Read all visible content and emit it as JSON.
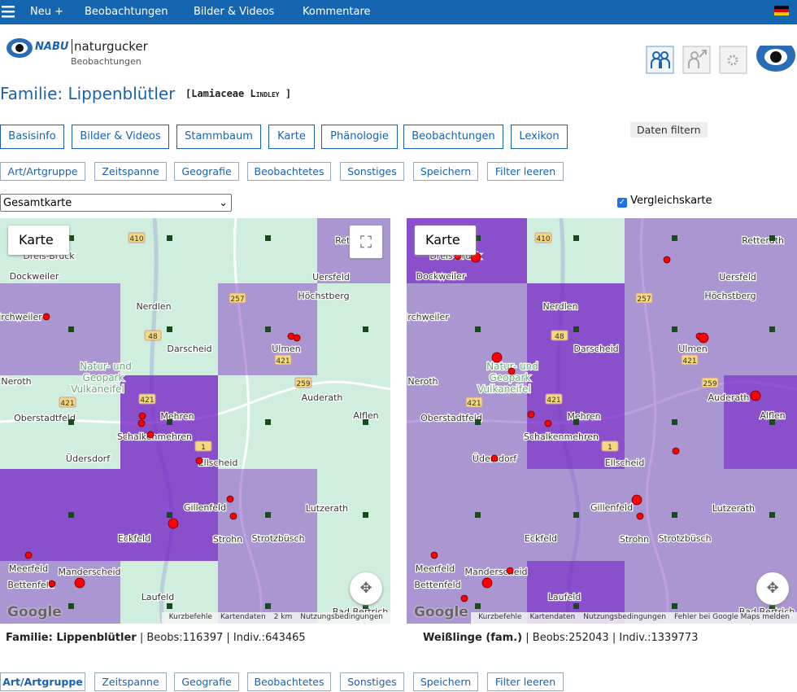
{
  "topnav": {
    "items": [
      "Neu +",
      "Beobachtungen",
      "Bilder & Videos",
      "Kommentare"
    ]
  },
  "header": {
    "brand": "NABU",
    "name": "naturgucker",
    "sub": "Beobachtungen"
  },
  "title": {
    "family": "Familie: Lippenblütler",
    "latin": "Lamiaceae",
    "author": "Lindley"
  },
  "tabs": [
    "Basisinfo",
    "Bilder & Videos",
    "Stammbaum",
    "Karte",
    "Phänologie",
    "Beobachtungen",
    "Lexikon"
  ],
  "filter_button": "Daten filtern",
  "filters": [
    "Art/Artgruppe",
    "Zeitspanne",
    "Geografie",
    "Beobachtetes",
    "Sonstiges",
    "Speichern",
    "Filter leeren"
  ],
  "select": "Gesamtkarte",
  "compare_label": "Vergleichskarte",
  "map_type": "Karte",
  "google": "Google",
  "map_labels": [
    "Dreis-Brück",
    "Dockweiler",
    "Nerdlen",
    "Darscheid",
    "Höchstberg",
    "Ulmen",
    "Uersfeld",
    "Retterath",
    "Auderath",
    "Alflen",
    "Neroth",
    "Oberstadtfeld",
    "Üdersdorf",
    "Mehren",
    "Schalkenmehren",
    "Ellscheid",
    "Gillenfeld",
    "Lutzerath",
    "Strohn",
    "Strotzbüsch",
    "Eckfeld",
    "Meerfeld",
    "Bettenfeld",
    "Manderscheid",
    "Laufeld",
    "Bad Bertrich",
    "irchweiler",
    "Natur- und",
    "Geopark",
    "Vulkaneifel"
  ],
  "roads": [
    "410",
    "257",
    "259",
    "421",
    "421",
    "1",
    "48",
    "421"
  ],
  "maps": [
    {
      "name": "Familie: Lippenblütler",
      "beobs_label": "Beobs:",
      "beobs": 116397,
      "indiv_label": "Indiv.:",
      "indiv": 643465,
      "footer": [
        "Kurzbefehle",
        "Kartendaten",
        "2 km",
        "Nutzungsbedingungen"
      ]
    },
    {
      "name": "Weißlinge (fam.)",
      "beobs_label": "Beobs:",
      "beobs": 252043,
      "indiv_label": "Indiv.:",
      "indiv": 1339773,
      "footer": [
        "Kurzbefehle",
        "Kartendaten",
        "Nutzungsbedingungen",
        "Fehler bei Google Maps melden"
      ]
    }
  ]
}
